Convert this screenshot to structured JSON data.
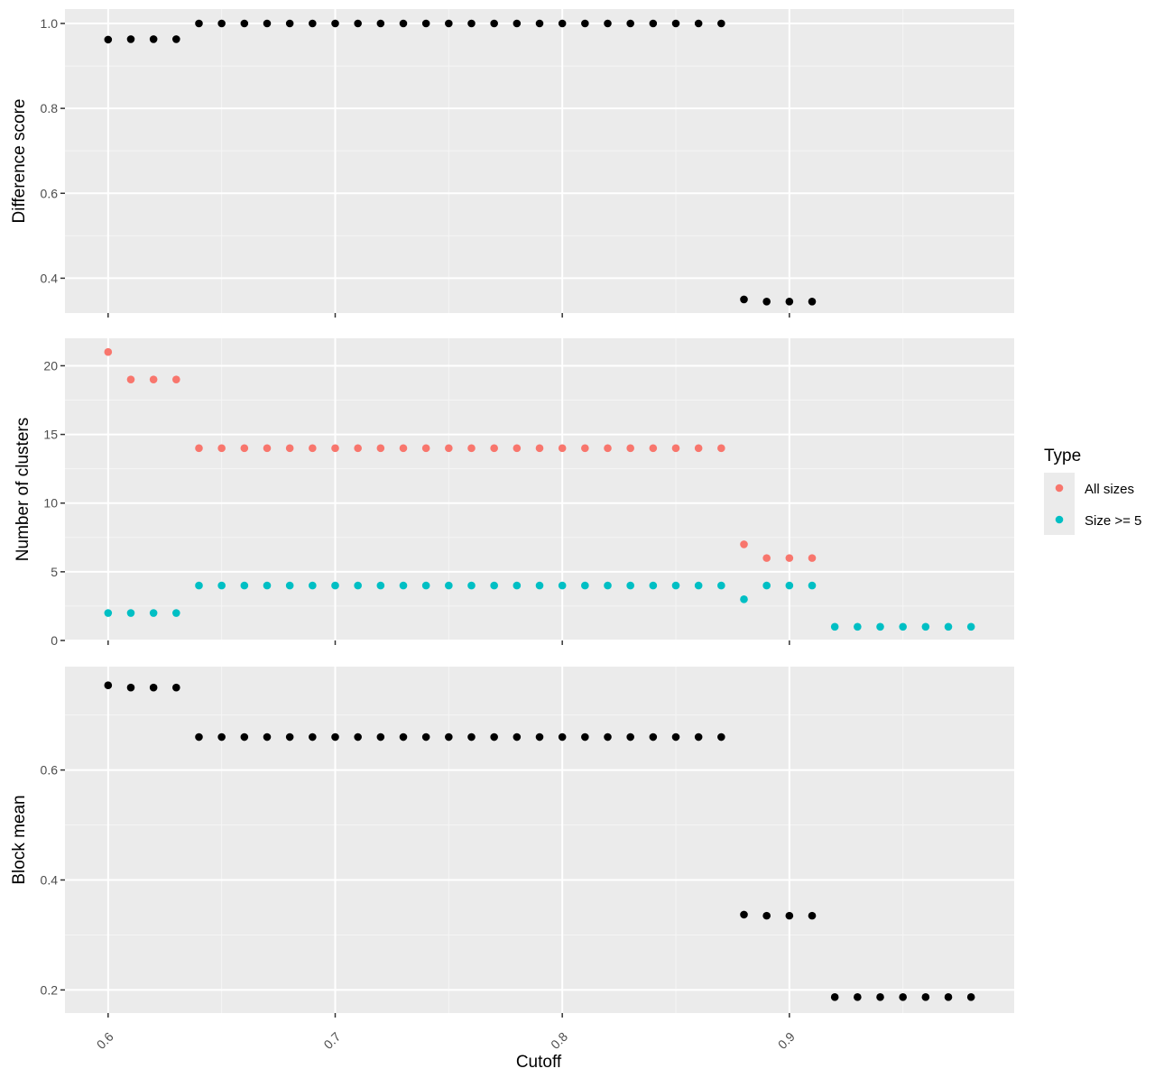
{
  "colors": {
    "panel_background": "#ebebeb",
    "grid_major": "#ffffff",
    "grid_minor": "#f5f5f5",
    "tick_text": "#4d4d4d",
    "all_sizes": "#f8766d",
    "size_ge_5": "#00bfc4",
    "single_series": "#000000"
  },
  "chart_data": [
    {
      "type": "scatter",
      "panel": "Difference score",
      "xlabel": "Cutoff",
      "ylabel": "Difference score",
      "xlim": [
        0.581,
        0.999
      ],
      "ylim": [
        0.318,
        1.034
      ],
      "xticks": [
        0.6,
        0.7,
        0.8,
        0.9
      ],
      "xtick_labels": [
        "0.6",
        "0.7",
        "0.8",
        "0.9"
      ],
      "yticks": [
        0.4,
        0.6,
        0.8,
        1.0
      ],
      "ytick_labels": [
        "0.4",
        "0.6",
        "0.8",
        "1.0"
      ],
      "grid": true,
      "series": [
        {
          "color": "#000000",
          "x": [
            0.6,
            0.61,
            0.62,
            0.63,
            0.64,
            0.65,
            0.66,
            0.67,
            0.68,
            0.69,
            0.7,
            0.71,
            0.72,
            0.73,
            0.74,
            0.75,
            0.76,
            0.77,
            0.78,
            0.79,
            0.8,
            0.81,
            0.82,
            0.83,
            0.84,
            0.85,
            0.86,
            0.87,
            0.88,
            0.89,
            0.9,
            0.91
          ],
          "y": [
            0.962,
            0.963,
            0.963,
            0.963,
            1.0,
            1.0,
            1.0,
            1.0,
            1.0,
            1.0,
            1.0,
            1.0,
            1.0,
            1.0,
            1.0,
            1.0,
            1.0,
            1.0,
            1.0,
            1.0,
            1.0,
            1.0,
            1.0,
            1.0,
            1.0,
            1.0,
            1.0,
            1.0,
            0.35,
            0.345,
            0.345,
            0.345
          ]
        }
      ]
    },
    {
      "type": "scatter",
      "panel": "Number of clusters",
      "xlabel": "Cutoff",
      "ylabel": "Number of clusters",
      "xlim": [
        0.581,
        0.999
      ],
      "ylim": [
        0,
        22
      ],
      "xticks": [
        0.6,
        0.7,
        0.8,
        0.9
      ],
      "xtick_labels": [
        "0.6",
        "0.7",
        "0.8",
        "0.9"
      ],
      "yticks": [
        0,
        5,
        10,
        15,
        20
      ],
      "ytick_labels": [
        "0",
        "5",
        "10",
        "15",
        "20"
      ],
      "grid": true,
      "legend": {
        "title": "Type",
        "placement": "right"
      },
      "series": [
        {
          "name": "All sizes",
          "color": "#f8766d",
          "x": [
            0.6,
            0.61,
            0.62,
            0.63,
            0.64,
            0.65,
            0.66,
            0.67,
            0.68,
            0.69,
            0.7,
            0.71,
            0.72,
            0.73,
            0.74,
            0.75,
            0.76,
            0.77,
            0.78,
            0.79,
            0.8,
            0.81,
            0.82,
            0.83,
            0.84,
            0.85,
            0.86,
            0.87,
            0.88,
            0.89,
            0.9,
            0.91
          ],
          "y": [
            21,
            19,
            19,
            19,
            14,
            14,
            14,
            14,
            14,
            14,
            14,
            14,
            14,
            14,
            14,
            14,
            14,
            14,
            14,
            14,
            14,
            14,
            14,
            14,
            14,
            14,
            14,
            14,
            7,
            6,
            6,
            6
          ]
        },
        {
          "name": "Size >= 5",
          "color": "#00bfc4",
          "x": [
            0.6,
            0.61,
            0.62,
            0.63,
            0.64,
            0.65,
            0.66,
            0.67,
            0.68,
            0.69,
            0.7,
            0.71,
            0.72,
            0.73,
            0.74,
            0.75,
            0.76,
            0.77,
            0.78,
            0.79,
            0.8,
            0.81,
            0.82,
            0.83,
            0.84,
            0.85,
            0.86,
            0.87,
            0.88,
            0.89,
            0.9,
            0.91,
            0.92,
            0.93,
            0.94,
            0.95,
            0.96,
            0.97,
            0.98
          ],
          "y": [
            2,
            2,
            2,
            2,
            4,
            4,
            4,
            4,
            4,
            4,
            4,
            4,
            4,
            4,
            4,
            4,
            4,
            4,
            4,
            4,
            4,
            4,
            4,
            4,
            4,
            4,
            4,
            4,
            3,
            4,
            4,
            4,
            1,
            1,
            1,
            1,
            1,
            1,
            1
          ]
        }
      ]
    },
    {
      "type": "scatter",
      "panel": "Block mean",
      "xlabel": "Cutoff",
      "ylabel": "Block mean",
      "xlim": [
        0.581,
        0.999
      ],
      "ylim": [
        0.158,
        0.788
      ],
      "xticks": [
        0.6,
        0.7,
        0.8,
        0.9
      ],
      "xtick_labels": [
        "0.6",
        "0.7",
        "0.8",
        "0.9"
      ],
      "yticks": [
        0.2,
        0.4,
        0.6
      ],
      "ytick_labels": [
        "0.2",
        "0.4",
        "0.6"
      ],
      "grid": true,
      "series": [
        {
          "color": "#000000",
          "x": [
            0.6,
            0.61,
            0.62,
            0.63,
            0.64,
            0.65,
            0.66,
            0.67,
            0.68,
            0.69,
            0.7,
            0.71,
            0.72,
            0.73,
            0.74,
            0.75,
            0.76,
            0.77,
            0.78,
            0.79,
            0.8,
            0.81,
            0.82,
            0.83,
            0.84,
            0.85,
            0.86,
            0.87,
            0.88,
            0.89,
            0.9,
            0.91,
            0.92,
            0.93,
            0.94,
            0.95,
            0.96,
            0.97,
            0.98
          ],
          "y": [
            0.754,
            0.75,
            0.75,
            0.75,
            0.66,
            0.66,
            0.66,
            0.66,
            0.66,
            0.66,
            0.66,
            0.66,
            0.66,
            0.66,
            0.66,
            0.66,
            0.66,
            0.66,
            0.66,
            0.66,
            0.66,
            0.66,
            0.66,
            0.66,
            0.66,
            0.66,
            0.66,
            0.66,
            0.337,
            0.335,
            0.335,
            0.335,
            0.187,
            0.187,
            0.187,
            0.187,
            0.187,
            0.187,
            0.187
          ]
        }
      ]
    }
  ]
}
